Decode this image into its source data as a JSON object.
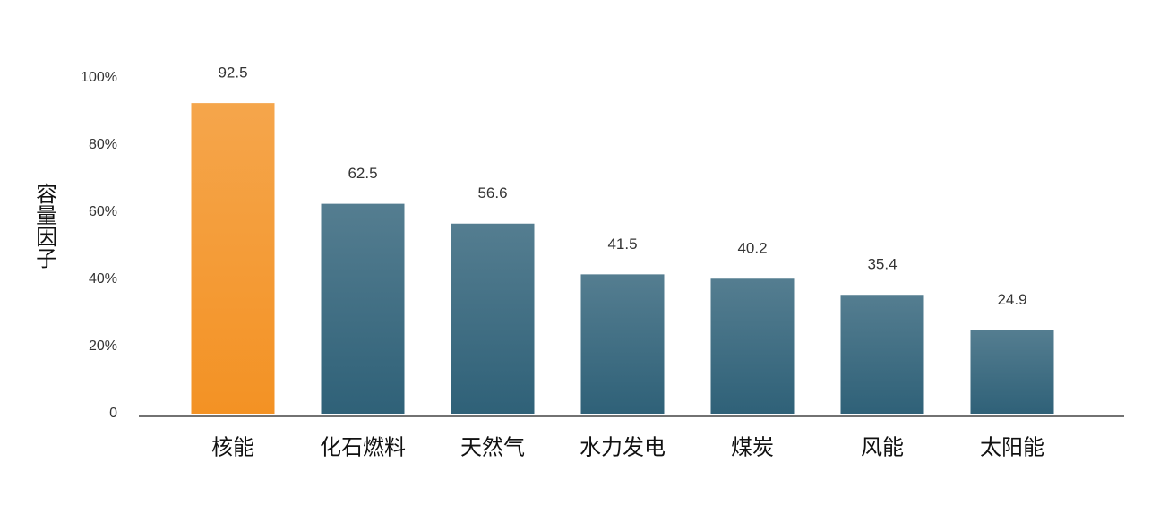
{
  "chart_data": {
    "type": "bar",
    "y_label": "容量因子",
    "categories": [
      "核能",
      "化石燃料",
      "天然气",
      "水力发电",
      "煤炭",
      "风能",
      "太阳能"
    ],
    "values": [
      92.5,
      62.5,
      56.6,
      41.5,
      40.2,
      35.4,
      24.9
    ],
    "colors": [
      "#f39224",
      "#2f6178",
      "#2f6178",
      "#2f6178",
      "#2f6178",
      "#2f6178",
      "#2f6178"
    ],
    "ylim": [
      0,
      100
    ],
    "yticks": [
      0,
      {
        "value": 20,
        "label": "20%"
      },
      {
        "value": 40,
        "label": "40%"
      },
      {
        "value": 60,
        "label": "60%"
      },
      {
        "value": 80,
        "label": "80%"
      },
      {
        "value": 100,
        "label": "100%"
      }
    ],
    "grid": false
  }
}
